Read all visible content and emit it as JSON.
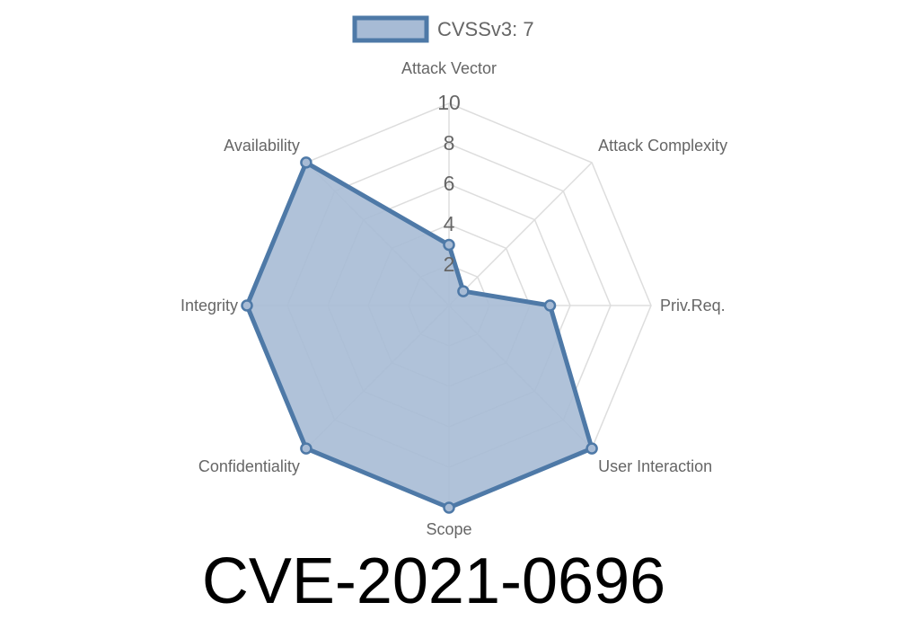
{
  "chart_data": {
    "type": "radar",
    "title": "CVE-2021-0696",
    "categories": [
      "Attack Vector",
      "Attack Complexity",
      "Priv.Req.",
      "User Interaction",
      "Scope",
      "Confidentiality",
      "Integrity",
      "Availability"
    ],
    "series": [
      {
        "name": "CVSSv3: 7",
        "values": [
          3,
          1,
          5,
          10,
          10,
          10,
          10,
          10
        ]
      }
    ],
    "rlim": [
      0,
      10
    ],
    "ticks": [
      "2",
      "4",
      "6",
      "8",
      "10"
    ],
    "tick_values": [
      2,
      4,
      6,
      8,
      10
    ],
    "grid": true,
    "legend": "top",
    "colors": {
      "line": "#4e79a7",
      "fill": "#a7bbd5",
      "grid": "#dddddd"
    }
  }
}
